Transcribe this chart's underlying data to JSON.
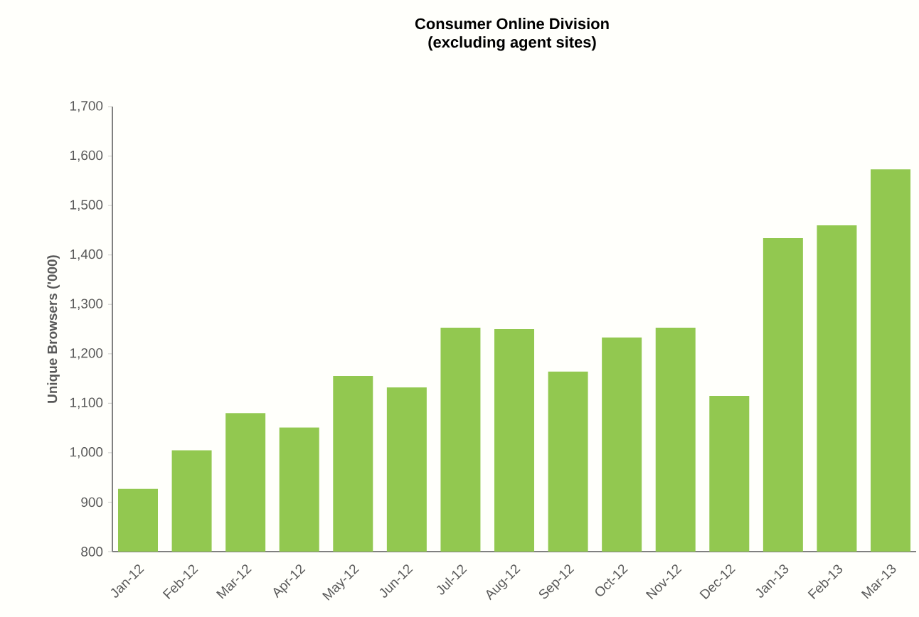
{
  "chart_data": {
    "type": "bar",
    "title": "Consumer Online Division",
    "subtitle": "(excluding agent sites)",
    "ylabel": "Unique Browsers ('000)",
    "categories": [
      "Jan-12",
      "Feb-12",
      "Mar-12",
      "Apr-12",
      "May-12",
      "Jun-12",
      "Jul-12",
      "Aug-12",
      "Sep-12",
      "Oct-12",
      "Nov-12",
      "Dec-12",
      "Jan-13",
      "Feb-13",
      "Mar-13"
    ],
    "values": [
      927,
      1005,
      1080,
      1051,
      1155,
      1132,
      1253,
      1250,
      1164,
      1233,
      1253,
      1115,
      1434,
      1460,
      1573
    ],
    "color": "#92c850",
    "ylim": [
      800,
      1700
    ],
    "yticks": [
      800,
      900,
      {
        "value": 1000,
        "label": "1,000"
      },
      {
        "value": 1100,
        "label": "1,100"
      },
      {
        "value": 1200,
        "label": "1,200"
      },
      {
        "value": 1300,
        "label": "1,300"
      },
      {
        "value": 1400,
        "label": "1,400"
      },
      {
        "value": 1500,
        "label": "1,500"
      },
      {
        "value": 1600,
        "label": "1,600"
      },
      {
        "value": 1700,
        "label": "1,700"
      }
    ],
    "grid": false
  }
}
